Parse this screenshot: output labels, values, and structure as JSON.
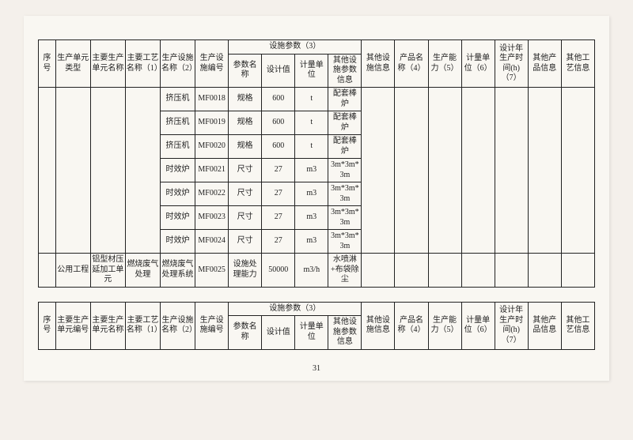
{
  "header": {
    "c0": "序号",
    "c1": "生产单元类型",
    "c2": "主要生产单元名称",
    "c3": "主要工艺名称（1）",
    "c4": "生产设施名称（2）",
    "c5": "生产设施编号",
    "param_group": "设施参数（3）",
    "c6": "参数名称",
    "c7": "设计值",
    "c8": "计量单位",
    "c9": "其他设施参数信息",
    "c10": "其他设施信息",
    "c11": "产品名称（4）",
    "c12": "生产能力（5）",
    "c13": "计量单位（6）",
    "c14": "设计年生产时间(h)（7）",
    "c15": "其他产品信息",
    "c16": "其他工艺信息"
  },
  "header2": {
    "c1": "主要生产单元编号",
    "c2": "主要生产单元名称"
  },
  "rows": [
    {
      "c4": "挤压机",
      "c5": "MF0018",
      "c6": "规格",
      "c7": "600",
      "c8": "t",
      "c9": "配套棒炉"
    },
    {
      "c4": "挤压机",
      "c5": "MF0019",
      "c6": "规格",
      "c7": "600",
      "c8": "t",
      "c9": "配套棒炉"
    },
    {
      "c4": "挤压机",
      "c5": "MF0020",
      "c6": "规格",
      "c7": "600",
      "c8": "t",
      "c9": "配套棒炉"
    },
    {
      "c4": "时效炉",
      "c5": "MF0021",
      "c6": "尺寸",
      "c7": "27",
      "c8": "m3",
      "c9": "3m*3m*3m"
    },
    {
      "c4": "时效炉",
      "c5": "MF0022",
      "c6": "尺寸",
      "c7": "27",
      "c8": "m3",
      "c9": "3m*3m*3m"
    },
    {
      "c4": "时效炉",
      "c5": "MF0023",
      "c6": "尺寸",
      "c7": "27",
      "c8": "m3",
      "c9": "3m*3m*3m"
    },
    {
      "c4": "时效炉",
      "c5": "MF0024",
      "c6": "尺寸",
      "c7": "27",
      "c8": "m3",
      "c9": "3m*3m*3m"
    }
  ],
  "lastrow": {
    "c1": "公用工程",
    "c2": "铝型材压延加工单元",
    "c3": "燃烧废气处理",
    "c4": "燃烧废气处理系统",
    "c5": "MF0025",
    "c6": "设施处理能力",
    "c7": "50000",
    "c8": "m3/h",
    "c9": "水喷淋+布袋除尘"
  },
  "pagenum": "31"
}
